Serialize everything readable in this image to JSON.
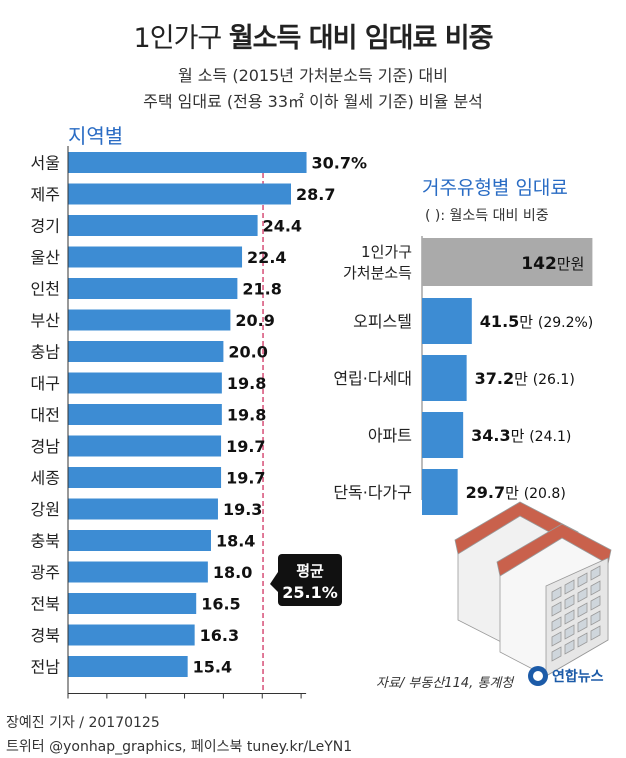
{
  "header": {
    "title_prefix": "1인가구",
    "title_bold": "월소득 대비 임대료 비중",
    "subtitle_line1": "월 소득 (2015년 가처분소득 기준) 대비",
    "subtitle_line2": "주택 임대료 (전용 33㎡ 이하 월세 기준) 비율 분석"
  },
  "region_section_title": "지역별",
  "housing_section_title": "거주유형별 임대료",
  "housing_section_note": "(   ): 월소득 대비 비중",
  "average_label": "평균",
  "average_value": "25.1%",
  "source": "자료/ 부동산114, 통계청",
  "footer": {
    "credit_line1": "장예진 기자 / 20170125",
    "credit_line2": "트위터 @yonhap_graphics, 페이스북 tuney.kr/LeYN1"
  },
  "logo_text": "연합뉴스",
  "colors": {
    "bar": "#3d8cd3",
    "bar_gray": "#aaaaaa",
    "title_blue": "#2a6cc4",
    "average_line": "#cc2255",
    "callout_bg": "#111111"
  },
  "chart_data": [
    {
      "type": "bar",
      "orientation": "horizontal",
      "title": "지역별",
      "categories": [
        "서울",
        "제주",
        "경기",
        "울산",
        "인천",
        "부산",
        "충남",
        "대구",
        "대전",
        "경남",
        "세종",
        "강원",
        "충북",
        "광주",
        "전북",
        "경북",
        "전남"
      ],
      "values": [
        30.7,
        28.7,
        24.4,
        22.4,
        21.8,
        20.9,
        20.0,
        19.8,
        19.8,
        19.7,
        19.7,
        19.3,
        18.4,
        18.0,
        16.5,
        16.3,
        15.4
      ],
      "value_labels": [
        "30.7%",
        "28.7",
        "24.4",
        "22.4",
        "21.8",
        "20.9",
        "20.0",
        "19.8",
        "19.8",
        "19.7",
        "19.7",
        "19.3",
        "18.4",
        "18.0",
        "16.5",
        "16.3",
        "15.4"
      ],
      "xlim": [
        0,
        30
      ],
      "xticks": [
        0,
        5,
        10,
        15,
        20,
        25,
        30
      ],
      "reference_line": 25.1
    },
    {
      "type": "bar",
      "orientation": "horizontal",
      "title": "거주유형별 임대료",
      "unit": "만원",
      "reference": {
        "label": "1인가구 가처분소득",
        "label_lines": [
          "1인가구",
          "가처분소득"
        ],
        "value": 142,
        "value_text": "142",
        "unit_text": "만원"
      },
      "categories": [
        "오피스텔",
        "연립·다세대",
        "아파트",
        "단독·다가구"
      ],
      "values": [
        41.5,
        37.2,
        34.3,
        29.7
      ],
      "value_text": [
        "41.5",
        "37.2",
        "34.3",
        "29.7"
      ],
      "unit_text": "만",
      "shares": [
        "(29.2%)",
        "(26.1)",
        "(24.1)",
        "(20.8)"
      ]
    }
  ]
}
